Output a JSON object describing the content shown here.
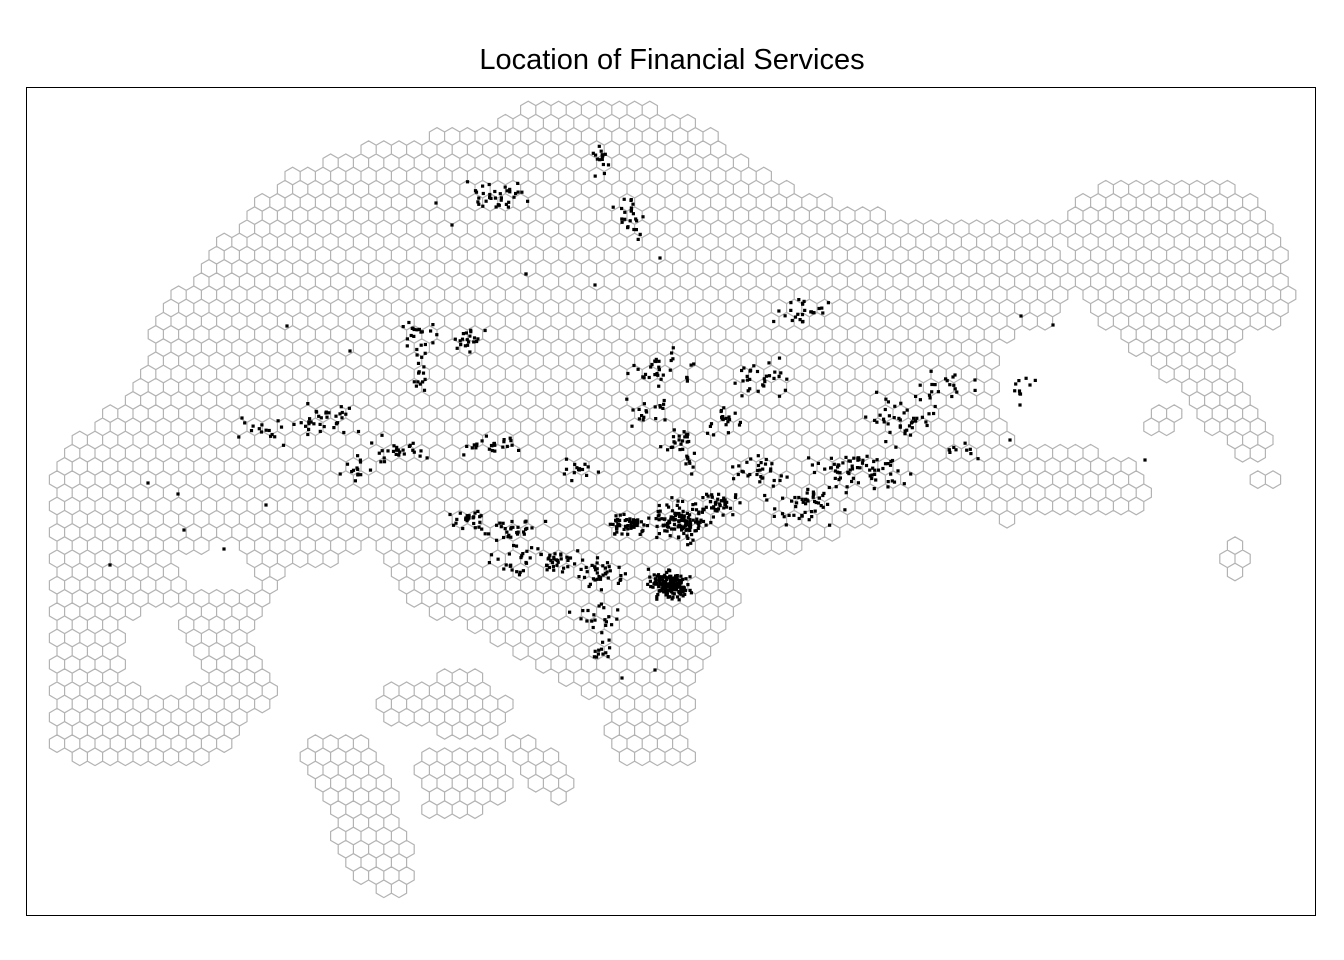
{
  "title": "Location of Financial Services",
  "map": {
    "hex_grid": {
      "stroke_color": "#b3b3b3",
      "fill": "none"
    },
    "points": {
      "color": "#000000",
      "meaning": "financial-service-locations"
    }
  },
  "colors": {
    "background": "#ffffff",
    "frame": "#000000",
    "hex": "#b3b3b3",
    "points": "#000000"
  }
}
